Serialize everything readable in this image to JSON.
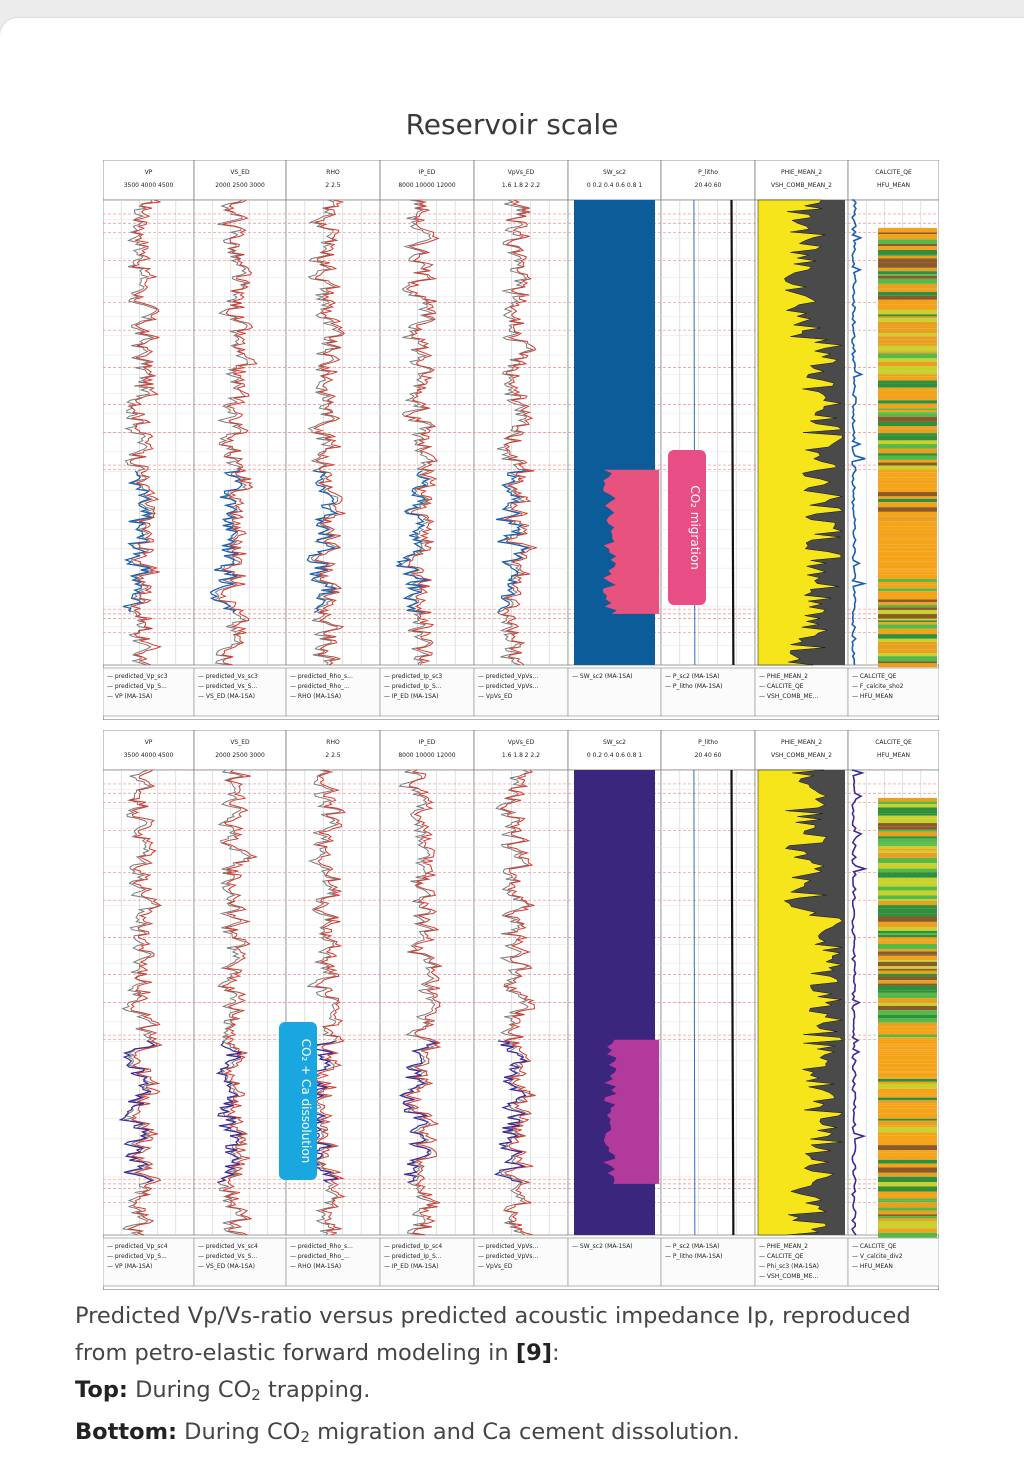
{
  "title": "Reservoir scale",
  "caption": {
    "line1": "Predicted Vp/Vs-ratio versus predicted acoustic impedance Ip, reproduced",
    "line2_a": "from petro-elastic forward modeling in ",
    "ref": "[9]",
    "line2_b": ":",
    "top_label": "Top:",
    "top_text_a": " During CO",
    "top_sub": "2",
    "top_text_b": " trapping.",
    "bottom_label": "Bottom:",
    "bottom_text_a": " During CO",
    "bottom_sub": "2",
    "bottom_text_b": " migration and Ca cement dissolution."
  },
  "colors": {
    "red_curve": "#d9382b",
    "gray_curve": "#7a7a7a",
    "blue_top": "#1a5fb4",
    "blue_bottom": "#3b2a9b",
    "sw_fill_top": "#0c5c9a",
    "sw_fill_bottom": "#3b267e",
    "co2_zone_top": "#e8527f",
    "co2_zone_bottom": "#b23a9c",
    "phie_fill": "#f6e51a",
    "vsh_fill": "#4a4a4a",
    "label_top": "#e84d86",
    "label_bottom": "#1aa7e0"
  },
  "chart_data": [
    {
      "type": "well-log",
      "panel": "top",
      "annotation": "CO₂ migration",
      "tracks": [
        {
          "header": "VP",
          "scale": [
            "3500",
            "4000",
            "4500"
          ]
        },
        {
          "header": "VS_ED",
          "scale": [
            "2000",
            "2500",
            "3000"
          ]
        },
        {
          "header": "RHO",
          "scale": [
            "2",
            "2.5"
          ]
        },
        {
          "header": "IP_ED",
          "scale": [
            "8000",
            "10000",
            "12000"
          ]
        },
        {
          "header": "VpVs_ED",
          "scale": [
            "1.6",
            "1.8",
            "2",
            "2.2"
          ]
        },
        {
          "header": "SW_sc2",
          "scale": [
            "0",
            "0.2",
            "0.4",
            "0.6",
            "0.8",
            "1"
          ]
        },
        {
          "header": "P_litho",
          "scale": [
            "20",
            "40",
            "60"
          ]
        },
        {
          "header": "PHIE_MEAN_2",
          "scale": [
            "VSH_COMB_MEAN_2"
          ]
        },
        {
          "header": "CALCITE_QE",
          "scale": [
            "HFU_MEAN"
          ]
        }
      ],
      "legends": [
        [
          "predicted_Vp_sc3",
          "predicted_Vp_S...",
          "VP (MA-1SA)"
        ],
        [
          "predicted_Vs_sc3",
          "predicted_Vs_S...",
          "VS_ED (MA-1SA)"
        ],
        [
          "predicted_Rho_s...",
          "predicted_Rho_...",
          "RHO (MA-1SA)"
        ],
        [
          "predicted_Ip_sc3",
          "predicted_Ip_S...",
          "IP_ED (MA-1SA)"
        ],
        [
          "predicted_VpVs...",
          "predicted_VpVs...",
          "VpVs_ED"
        ],
        [
          "SW_sc2 (MA-1SA)"
        ],
        [
          "P_sc2 (MA-1SA)",
          "P_litho (MA-1SA)"
        ],
        [
          "PHIE_MEAN_2",
          "CALCITE_QE",
          "VSH_COMB_ME..."
        ],
        [
          "CALCITE_QE",
          "F_calcite_sho2",
          "HFU_MEAN"
        ]
      ]
    },
    {
      "type": "well-log",
      "panel": "bottom",
      "annotation": "CO₂ + Ca dissolution",
      "tracks": [
        {
          "header": "VP",
          "scale": [
            "3500",
            "4000",
            "4500"
          ]
        },
        {
          "header": "VS_ED",
          "scale": [
            "2000",
            "2500",
            "3000"
          ]
        },
        {
          "header": "RHO",
          "scale": [
            "2",
            "2.5"
          ]
        },
        {
          "header": "IP_ED",
          "scale": [
            "8000",
            "10000",
            "12000"
          ]
        },
        {
          "header": "VpVs_ED",
          "scale": [
            "1.6",
            "1.8",
            "2",
            "2.2"
          ]
        },
        {
          "header": "SW_sc2",
          "scale": [
            "0",
            "0.2",
            "0.4",
            "0.6",
            "0.8",
            "1"
          ]
        },
        {
          "header": "P_litho",
          "scale": [
            "20",
            "40",
            "60"
          ]
        },
        {
          "header": "PHIE_MEAN_2",
          "scale": [
            "VSH_COMB_MEAN_2"
          ]
        },
        {
          "header": "CALCITE_QE",
          "scale": [
            "HFU_MEAN"
          ]
        }
      ],
      "legends": [
        [
          "predicted_Vp_sc4",
          "predicted_Vp_S...",
          "VP (MA-1SA)"
        ],
        [
          "predicted_Vs_sc4",
          "predicted_Vs_S...",
          "VS_ED (MA-1SA)"
        ],
        [
          "predicted_Rho_s...",
          "predicted_Rho_...",
          "RHO (MA-1SA)"
        ],
        [
          "predicted_Ip_sc4",
          "predicted_Ip_S...",
          "IP_ED (MA-1SA)"
        ],
        [
          "predicted_VpVs...",
          "predicted_VpVs...",
          "VpVs_ED"
        ],
        [
          "SW_sc2 (MA-1SA)"
        ],
        [
          "P_sc2 (MA-1SA)",
          "P_litho (MA-1SA)"
        ],
        [
          "PHIE_MEAN_2",
          "CALCITE_QE",
          "Phi_sc3 (MA-1SA)",
          "VSH_COMB_ME..."
        ],
        [
          "CALCITE_QE",
          "V_calcite_div2",
          "HFU_MEAN"
        ]
      ]
    }
  ]
}
